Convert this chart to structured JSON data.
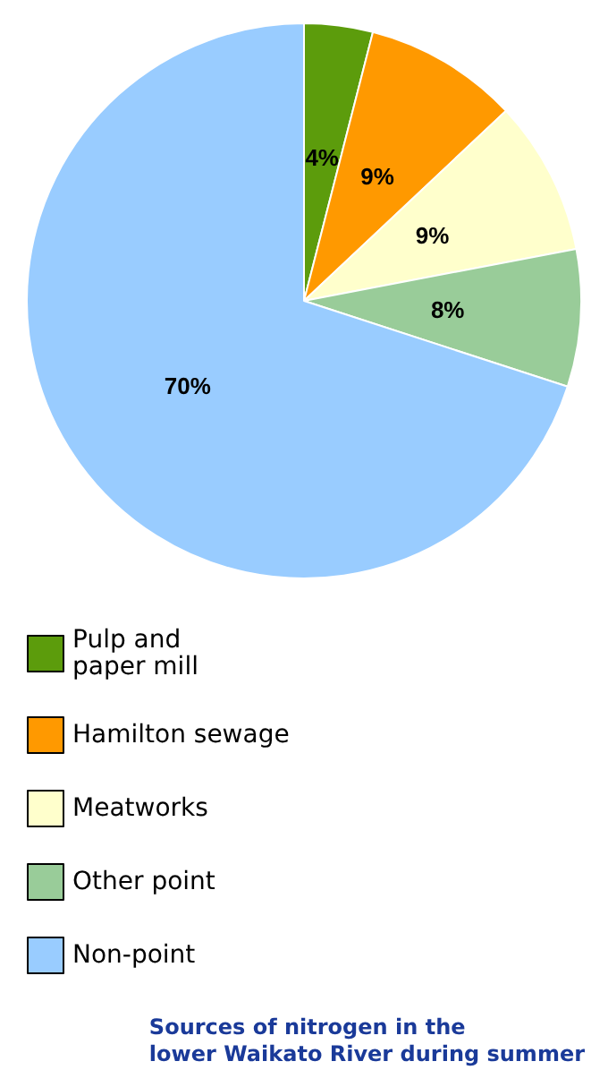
{
  "chart_data": {
    "type": "pie",
    "title": "Sources of nitrogen in the\nlower Waikato River during summer",
    "categories": [
      "Pulp and\npaper mill",
      "Hamilton sewage",
      "Meatworks",
      "Other point",
      "Non-point"
    ],
    "values": [
      4,
      9,
      9,
      8,
      70
    ],
    "colors": [
      "#5c9c0c",
      "#ff9900",
      "#ffffcc",
      "#99cc99",
      "#99ccff"
    ],
    "value_labels": [
      "4%",
      "9%",
      "9%",
      "8%",
      "70%"
    ],
    "legend": "bottom"
  }
}
